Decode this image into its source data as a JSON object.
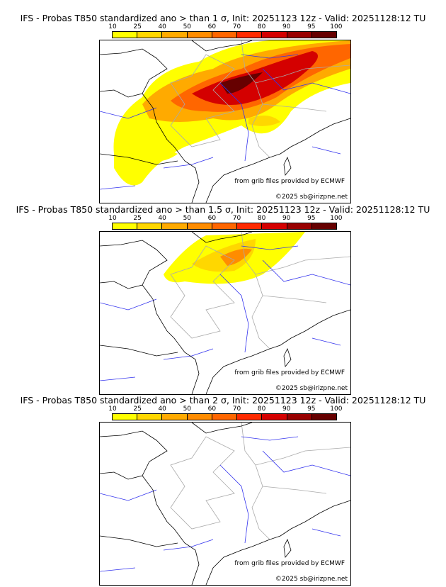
{
  "panels": [
    {
      "title": "IFS - Probas T850  standardized ano > than 1 σ, Init: 20251123 12z - Valid: 20251128:12 TU",
      "level": 1
    },
    {
      "title": "IFS - Probas T850  standardized ano > than 1.5 σ, Init: 20251123 12z - Valid: 20251128:12 TU",
      "level": 2
    },
    {
      "title": "IFS - Probas T850  standardized ano > than 2 σ, Init: 20251123 12z - Valid: 20251128:12 TU",
      "level": 3
    }
  ],
  "colorbar": {
    "ticks": [
      "10",
      "25",
      "40",
      "50",
      "60",
      "70",
      "80",
      "90",
      "95",
      "100"
    ],
    "colors": [
      "#ffff00",
      "#ffd700",
      "#ffaa00",
      "#ff8c00",
      "#ff6600",
      "#ff2a00",
      "#d40000",
      "#980000",
      "#660000"
    ]
  },
  "credits": {
    "source": "from grib files provided by ECMWF",
    "copyright": "©2025 sb@irizpne.net"
  }
}
